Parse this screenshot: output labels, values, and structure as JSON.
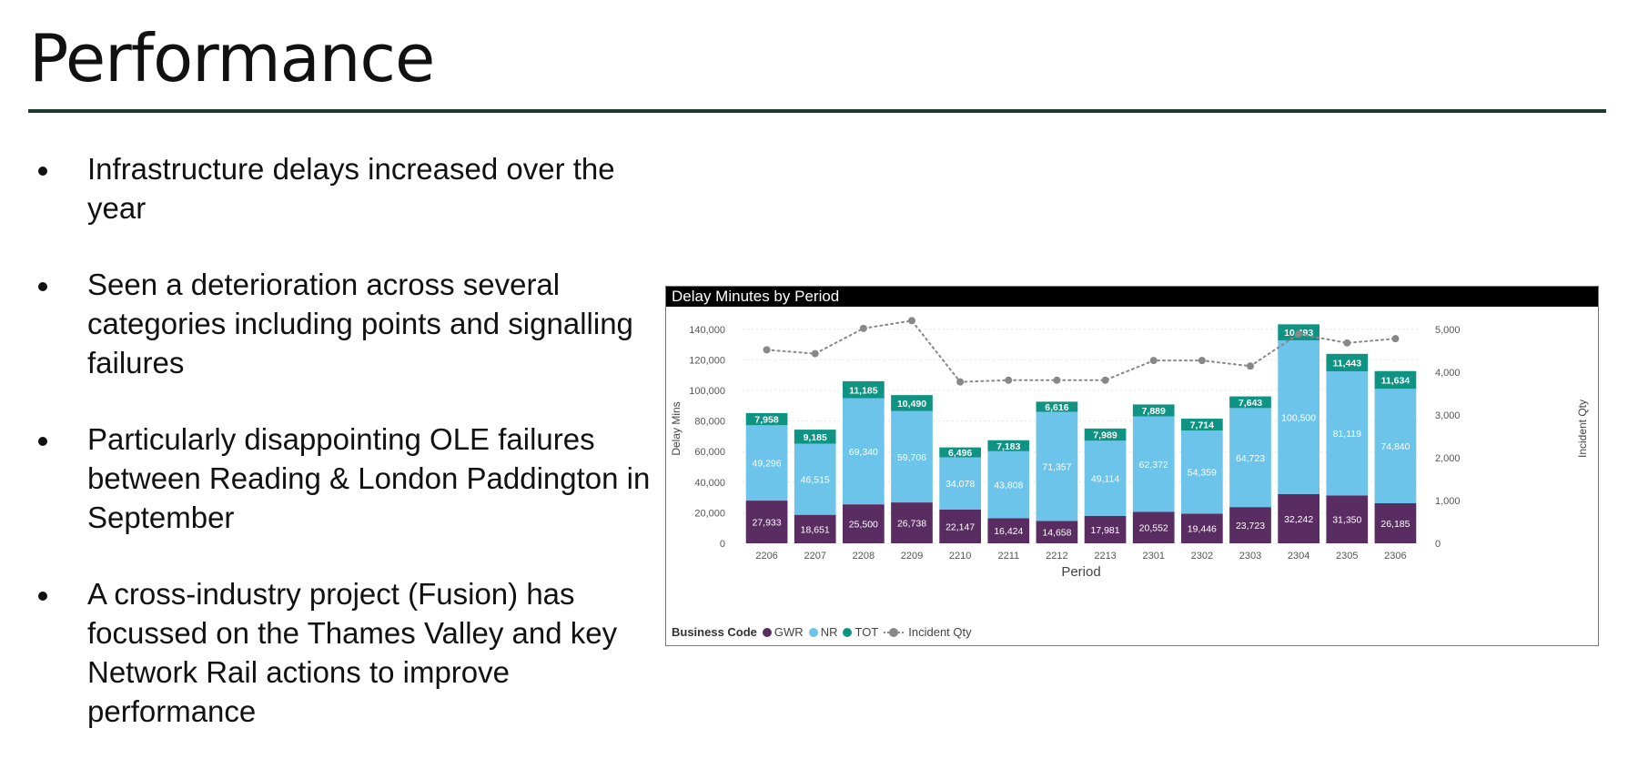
{
  "slide": {
    "title": "Performance",
    "bullets": [
      "Infrastructure delays increased over the year",
      "Seen a deterioration across several categories including points and signalling failures",
      "Particularly disappointing OLE failures between Reading & London Paddington in September",
      "A cross-industry project (Fusion) has focussed on the Thames Valley and key Network Rail actions to improve performance"
    ]
  },
  "chart_data": {
    "type": "bar",
    "stacked": true,
    "title": "Delay Minutes by Period",
    "xlabel": "Period",
    "ylabel": "Delay Mins",
    "y2label": "Incident Qty",
    "ylim": [
      0,
      150000
    ],
    "y2lim": [
      0,
      5357
    ],
    "yticks": [
      0,
      20000,
      40000,
      60000,
      80000,
      100000,
      120000,
      140000
    ],
    "ytick_labels": [
      "0",
      "20,000",
      "40,000",
      "60,000",
      "80,000",
      "100,000",
      "120,000",
      "140,000"
    ],
    "y2ticks": [
      0,
      1000,
      2000,
      3000,
      4000,
      5000
    ],
    "y2tick_labels": [
      "0",
      "1,000",
      "2,000",
      "3,000",
      "4,000",
      "5,000"
    ],
    "categories": [
      "2206",
      "2207",
      "2208",
      "2209",
      "2210",
      "2211",
      "2212",
      "2213",
      "2301",
      "2302",
      "2303",
      "2304",
      "2305",
      "2306"
    ],
    "legend_title": "Business Code",
    "series": [
      {
        "name": "GWR",
        "color": "#5a2d62",
        "values": [
          27933,
          18651,
          25500,
          26738,
          22147,
          16424,
          14658,
          17981,
          20552,
          19446,
          23723,
          32242,
          31350,
          26185
        ],
        "labels": [
          "27,933",
          "18,651",
          "25,500",
          "26,738",
          "22,147",
          "16,424",
          "14,658",
          "17,981",
          "20,552",
          "19,446",
          "23,723",
          "32,242",
          "31,350",
          "26,185"
        ]
      },
      {
        "name": "NR",
        "color": "#6cc4ea",
        "values": [
          49296,
          46515,
          69340,
          59706,
          34078,
          43808,
          71357,
          49114,
          62372,
          54359,
          64723,
          100500,
          81119,
          74840
        ],
        "labels": [
          "49,296",
          "46,515",
          "69,340",
          "59,706",
          "34,078",
          "43,808",
          "71,357",
          "49,114",
          "62,372",
          "54,359",
          "64,723",
          "100,500",
          "81,119",
          "74,840"
        ]
      },
      {
        "name": "TOT",
        "color": "#0f9484",
        "values": [
          7958,
          9185,
          11185,
          10490,
          6496,
          7183,
          6616,
          7989,
          7889,
          7714,
          7643,
          10493,
          11443,
          11634
        ],
        "labels": [
          "7,958",
          "9,185",
          "11,185",
          "10,490",
          "6,496",
          "7,183",
          "6,616",
          "7,989",
          "7,889",
          "7,714",
          "7,643",
          "10,493",
          "11,443",
          "11,634"
        ]
      }
    ],
    "line_series": {
      "name": "Incident Qty",
      "color": "#888888",
      "axis": "right",
      "values": [
        4520,
        4430,
        5020,
        5200,
        3770,
        3810,
        3810,
        3810,
        4270,
        4270,
        4140,
        4890,
        4680,
        4780
      ]
    },
    "grid": true,
    "legend_position": "bottom-left"
  }
}
